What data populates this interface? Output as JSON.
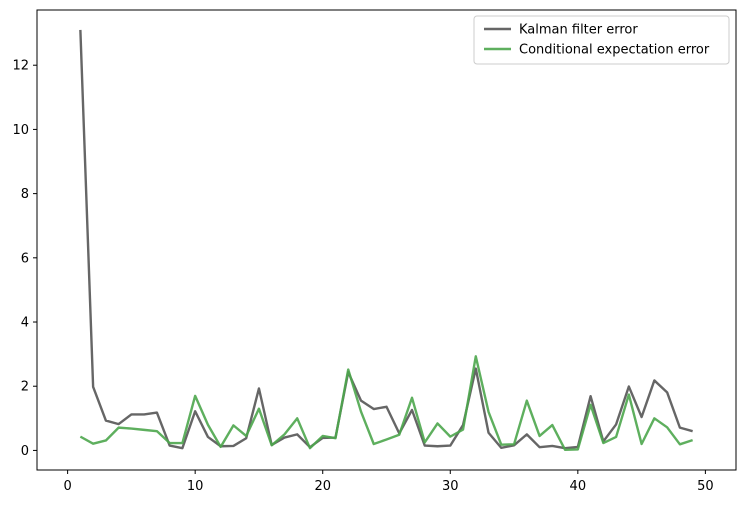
{
  "chart_data": {
    "type": "line",
    "title": "",
    "xlabel": "",
    "ylabel": "",
    "xlim": [
      -2.4,
      52.4
    ],
    "ylim": [
      -0.61,
      13.72
    ],
    "x_ticks": [
      0,
      10,
      20,
      30,
      40,
      50
    ],
    "y_ticks": [
      0,
      2,
      4,
      6,
      8,
      10,
      12
    ],
    "grid": false,
    "legend_position": "top-right",
    "x": [
      1,
      2,
      3,
      4,
      5,
      6,
      7,
      8,
      9,
      10,
      11,
      12,
      13,
      14,
      15,
      16,
      17,
      18,
      19,
      20,
      21,
      22,
      23,
      24,
      25,
      26,
      27,
      28,
      29,
      30,
      31,
      32,
      33,
      34,
      35,
      36,
      37,
      38,
      39,
      40,
      41,
      42,
      43,
      44,
      45,
      46,
      47,
      48,
      49
    ],
    "series": [
      {
        "name": "Kalman filter error",
        "color": "#555555",
        "values": [
          13.1,
          1.98,
          0.93,
          0.82,
          1.12,
          1.12,
          1.18,
          0.15,
          0.07,
          1.22,
          0.42,
          0.13,
          0.14,
          0.38,
          1.93,
          0.17,
          0.4,
          0.5,
          0.1,
          0.39,
          0.4,
          2.44,
          1.55,
          1.29,
          1.36,
          0.53,
          1.26,
          0.15,
          0.13,
          0.15,
          0.79,
          2.55,
          0.55,
          0.08,
          0.16,
          0.5,
          0.1,
          0.14,
          0.07,
          0.11,
          1.69,
          0.28,
          0.81,
          1.99,
          1.04,
          2.18,
          1.81,
          0.71,
          0.6
        ]
      },
      {
        "name": "Conditional expectation error",
        "color": "#4ca64c",
        "values": [
          0.43,
          0.21,
          0.31,
          0.71,
          0.68,
          0.64,
          0.6,
          0.23,
          0.23,
          1.7,
          0.8,
          0.11,
          0.78,
          0.45,
          1.3,
          0.16,
          0.5,
          1.0,
          0.07,
          0.45,
          0.38,
          2.52,
          1.21,
          0.2,
          0.34,
          0.49,
          1.64,
          0.25,
          0.84,
          0.43,
          0.65,
          2.93,
          1.2,
          0.18,
          0.19,
          1.55,
          0.45,
          0.79,
          0.02,
          0.03,
          1.42,
          0.23,
          0.42,
          1.74,
          0.2,
          1.0,
          0.72,
          0.19,
          0.32
        ]
      }
    ]
  }
}
